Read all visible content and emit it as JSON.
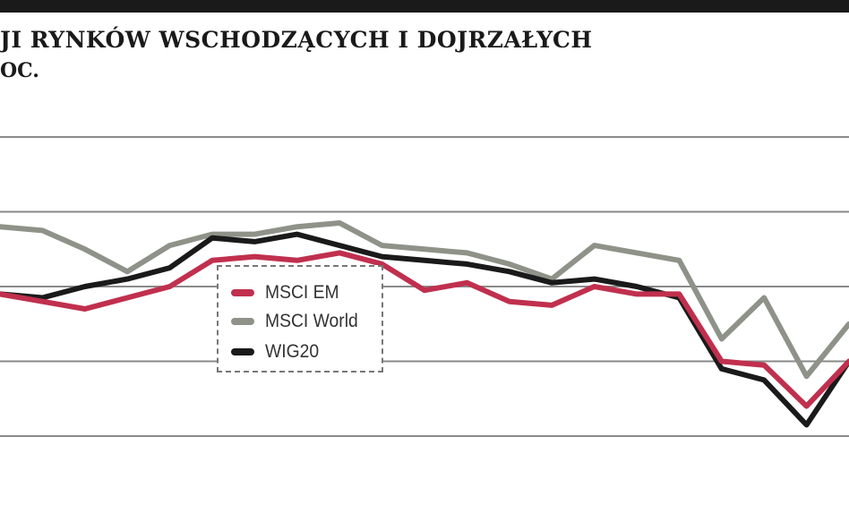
{
  "header": {
    "title": "JI RYNKÓW WSCHODZĄCYCH I DOJRZAŁYCH",
    "subtitle": "OC."
  },
  "chart_data": {
    "type": "line",
    "title": "JI RYNKÓW WSCHODZĄCYCH I DOJRZAŁYCH",
    "subtitle": "OC.",
    "xlabel": "",
    "ylabel": "",
    "grid": true,
    "legend_position": "center-left",
    "ylim": [
      0,
      6
    ],
    "gridlines": [
      1,
      2,
      3,
      4,
      5
    ],
    "x": [
      0,
      5,
      10,
      15,
      20,
      25,
      30,
      35,
      40,
      45,
      50,
      55,
      60,
      65,
      70,
      75,
      80,
      85,
      90,
      95,
      100
    ],
    "series": [
      {
        "name": "MSCI EM",
        "color": "#c0304e",
        "values": [
          2.9,
          2.8,
          2.7,
          2.85,
          3.0,
          3.35,
          3.4,
          3.35,
          3.45,
          3.3,
          2.95,
          3.05,
          2.8,
          2.75,
          3.0,
          2.9,
          2.9,
          2.0,
          1.95,
          1.4,
          2.0
        ]
      },
      {
        "name": "MSCI World",
        "color": "#8e9288",
        "values": [
          3.8,
          3.75,
          3.5,
          3.2,
          3.55,
          3.7,
          3.7,
          3.8,
          3.85,
          3.55,
          3.5,
          3.45,
          3.3,
          3.1,
          3.55,
          3.45,
          3.35,
          2.3,
          2.85,
          1.8,
          2.5
        ]
      },
      {
        "name": "WIG20",
        "color": "#1a1a1a",
        "values": [
          2.9,
          2.85,
          3.0,
          3.1,
          3.25,
          3.65,
          3.6,
          3.7,
          3.55,
          3.4,
          3.35,
          3.3,
          3.2,
          3.05,
          3.1,
          3.0,
          2.85,
          1.9,
          1.75,
          1.15,
          2.0
        ]
      }
    ]
  }
}
